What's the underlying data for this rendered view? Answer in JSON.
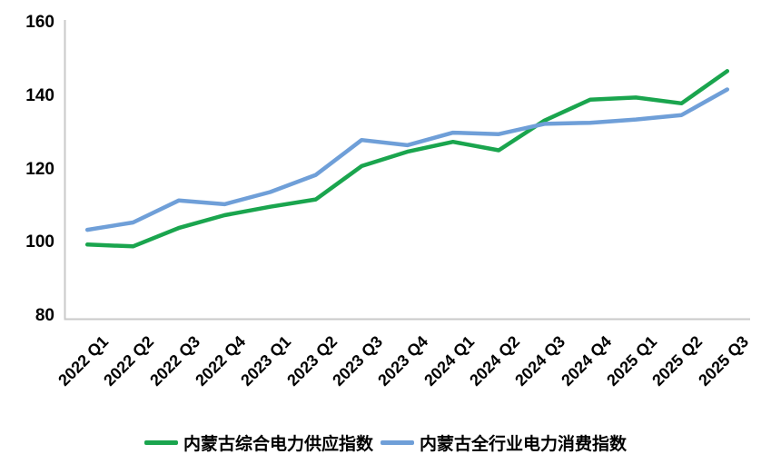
{
  "chart_data": {
    "type": "line",
    "categories": [
      "2022 Q1",
      "2022 Q2",
      "2022 Q3",
      "2022 Q4",
      "2023 Q1",
      "2023 Q2",
      "2023 Q3",
      "2023 Q4",
      "2024 Q1",
      "2024 Q2",
      "2024 Q3",
      "2024 Q4",
      "2025 Q1",
      "2025 Q2",
      "2025 Q3"
    ],
    "series": [
      {
        "name": "内蒙古综合电力供应指数",
        "color": "#1aa54e",
        "values": [
          99.5,
          99.0,
          104.0,
          107.5,
          109.8,
          111.8,
          120.9,
          124.8,
          127.5,
          125.2,
          133.3,
          139.0,
          139.6,
          138.0,
          146.8
        ]
      },
      {
        "name": "内蒙古全行业电力消费指数",
        "color": "#6f9fd8",
        "values": [
          103.5,
          105.5,
          111.5,
          110.5,
          113.8,
          118.5,
          128.0,
          126.6,
          130.0,
          129.6,
          132.4,
          132.7,
          133.6,
          134.8,
          141.8
        ]
      }
    ],
    "title": "",
    "xlabel": "",
    "ylabel": "",
    "ylim": [
      80,
      160
    ],
    "yticks": [
      80,
      100,
      120,
      140,
      160
    ],
    "grid": false,
    "legend_position": "bottom",
    "axis_color": "#c9c9c9",
    "text_color": "#000000",
    "line_width": 4.5
  }
}
